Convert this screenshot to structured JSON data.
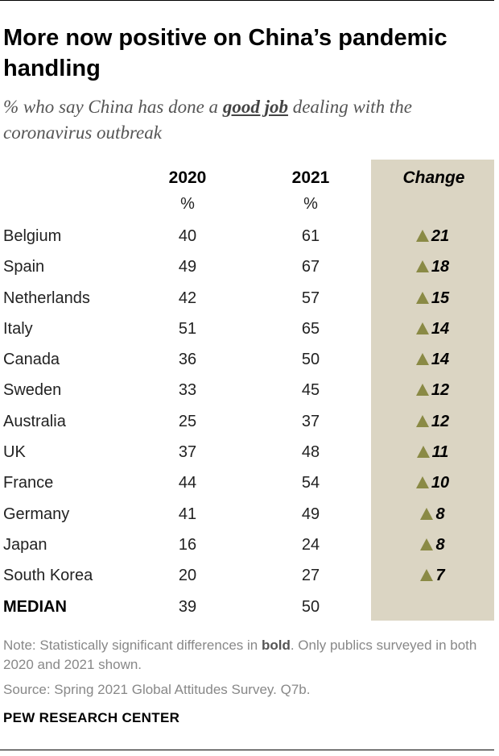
{
  "title": "More now positive on China’s pandemic handling",
  "subtitle": {
    "before": "% who say China has done a ",
    "emphasis": "good job",
    "after": " dealing with the coronavirus outbreak"
  },
  "columns": {
    "c2020": "2020",
    "c2021": "2021",
    "change": "Change",
    "unit": "%"
  },
  "colors": {
    "change_panel": "#dbd5c3",
    "triangle": "#8a8a45"
  },
  "icons": {
    "increase": "up-triangle-icon"
  },
  "note": {
    "before": "Note: Statistically significant differences in ",
    "bold": "bold",
    "after": ". Only publics surveyed in both 2020 and 2021 shown."
  },
  "source": "Source: Spring 2021 Global Attitudes Survey. Q7b.",
  "brand": "PEW RESEARCH CENTER",
  "chart_data": {
    "type": "table",
    "title": "More now positive on China’s pandemic handling",
    "subtitle": "% who say China has done a good job dealing with the coronavirus outbreak",
    "columns": [
      "2020",
      "2021",
      "Change"
    ],
    "unit": "%",
    "rows": [
      {
        "country": "Belgium",
        "y2020": "40",
        "y2021": "61",
        "change": "21",
        "significant": true
      },
      {
        "country": "Spain",
        "y2020": "49",
        "y2021": "67",
        "change": "18",
        "significant": true
      },
      {
        "country": "Netherlands",
        "y2020": "42",
        "y2021": "57",
        "change": "15",
        "significant": true
      },
      {
        "country": "Italy",
        "y2020": "51",
        "y2021": "65",
        "change": "14",
        "significant": true
      },
      {
        "country": "Canada",
        "y2020": "36",
        "y2021": "50",
        "change": "14",
        "significant": true
      },
      {
        "country": "Sweden",
        "y2020": "33",
        "y2021": "45",
        "change": "12",
        "significant": true
      },
      {
        "country": "Australia",
        "y2020": "25",
        "y2021": "37",
        "change": "12",
        "significant": true
      },
      {
        "country": "UK",
        "y2020": "37",
        "y2021": "48",
        "change": "11",
        "significant": true
      },
      {
        "country": "France",
        "y2020": "44",
        "y2021": "54",
        "change": "10",
        "significant": true
      },
      {
        "country": "Germany",
        "y2020": "41",
        "y2021": "49",
        "change": "8",
        "significant": true
      },
      {
        "country": "Japan",
        "y2020": "16",
        "y2021": "24",
        "change": "8",
        "significant": true
      },
      {
        "country": "South Korea",
        "y2020": "20",
        "y2021": "27",
        "change": "7",
        "significant": true
      }
    ],
    "median": {
      "label": "MEDIAN",
      "y2020": "39",
      "y2021": "50"
    }
  }
}
